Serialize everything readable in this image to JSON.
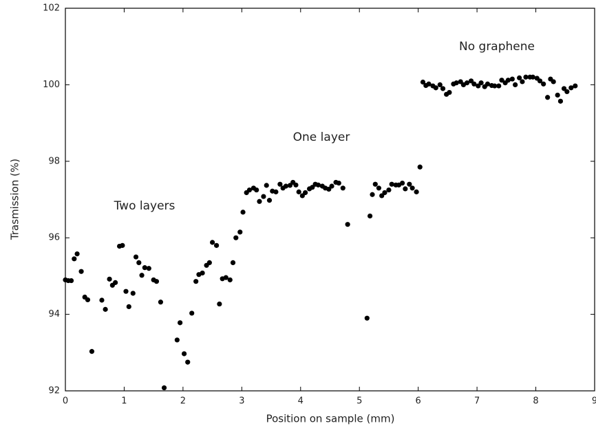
{
  "chart_data": {
    "type": "scatter",
    "x_label": "Position on sample (mm)",
    "y_label": "Trasmission (%)",
    "annotations": [
      "Two layers",
      "One layer",
      "No graphene"
    ],
    "color": "#000000",
    "xlim": [
      0,
      9
    ],
    "xticks": [
      0,
      1,
      2,
      3,
      4,
      5,
      6,
      7,
      8,
      9
    ],
    "ylim": [
      92,
      102
    ],
    "yticks": [
      92,
      94,
      96,
      98,
      100,
      102
    ],
    "x": [
      0.0,
      0.05,
      0.1,
      0.15,
      0.2,
      0.27,
      0.33,
      0.38,
      0.45,
      0.62,
      0.68,
      0.75,
      0.8,
      0.85,
      0.92,
      0.97,
      1.03,
      1.08,
      1.15,
      1.2,
      1.25,
      1.3,
      1.35,
      1.42,
      1.5,
      1.55,
      1.62,
      1.68,
      1.9,
      1.95,
      2.02,
      2.08,
      2.15,
      2.22,
      2.27,
      2.33,
      2.4,
      2.45,
      2.5,
      2.57,
      2.62,
      2.67,
      2.73,
      2.8,
      2.85,
      2.9,
      2.97,
      3.02,
      3.08,
      3.13,
      3.2,
      3.25,
      3.3,
      3.37,
      3.42,
      3.47,
      3.52,
      3.58,
      3.65,
      3.7,
      3.75,
      3.82,
      3.87,
      3.92,
      3.97,
      4.03,
      4.08,
      4.15,
      4.2,
      4.25,
      4.3,
      4.37,
      4.42,
      4.48,
      4.53,
      4.6,
      4.65,
      4.72,
      4.8,
      5.13,
      5.18,
      5.22,
      5.27,
      5.33,
      5.38,
      5.43,
      5.5,
      5.55,
      5.62,
      5.67,
      5.73,
      5.78,
      5.85,
      5.9,
      5.97,
      6.03,
      6.08,
      6.13,
      6.18,
      6.25,
      6.3,
      6.37,
      6.42,
      6.48,
      6.53,
      6.6,
      6.65,
      6.72,
      6.77,
      6.83,
      6.9,
      6.95,
      7.02,
      7.07,
      7.13,
      7.18,
      7.25,
      7.3,
      7.37,
      7.42,
      7.48,
      7.53,
      7.6,
      7.65,
      7.72,
      7.77,
      7.83,
      7.9,
      7.95,
      8.02,
      8.07,
      8.13,
      8.2,
      8.25,
      8.3,
      8.37,
      8.42,
      8.48,
      8.53,
      8.6,
      8.67
    ],
    "values": [
      94.9,
      94.88,
      94.88,
      95.45,
      95.58,
      95.12,
      94.45,
      94.38,
      93.03,
      94.37,
      94.13,
      94.92,
      94.76,
      94.83,
      95.78,
      95.8,
      94.6,
      94.2,
      94.55,
      95.5,
      95.35,
      95.02,
      95.22,
      95.2,
      94.9,
      94.86,
      94.32,
      92.08,
      93.33,
      93.78,
      92.97,
      92.75,
      94.03,
      94.86,
      95.04,
      95.08,
      95.28,
      95.35,
      95.88,
      95.8,
      94.27,
      94.93,
      94.96,
      94.9,
      95.35,
      96.0,
      96.15,
      96.67,
      97.18,
      97.25,
      97.3,
      97.25,
      96.95,
      97.08,
      97.37,
      96.98,
      97.22,
      97.2,
      97.4,
      97.3,
      97.35,
      97.37,
      97.45,
      97.38,
      97.2,
      97.1,
      97.18,
      97.28,
      97.32,
      97.4,
      97.38,
      97.35,
      97.3,
      97.27,
      97.35,
      97.45,
      97.43,
      97.3,
      96.35,
      93.9,
      96.57,
      97.13,
      97.4,
      97.3,
      97.1,
      97.18,
      97.25,
      97.4,
      97.38,
      97.38,
      97.43,
      97.28,
      97.4,
      97.3,
      97.2,
      97.85,
      100.07,
      99.98,
      100.02,
      99.97,
      99.92,
      100.0,
      99.9,
      99.75,
      99.8,
      100.02,
      100.05,
      100.08,
      100.0,
      100.05,
      100.1,
      100.02,
      99.97,
      100.05,
      99.95,
      100.02,
      99.98,
      99.97,
      99.97,
      100.12,
      100.05,
      100.12,
      100.15,
      100.0,
      100.18,
      100.08,
      100.2,
      100.2,
      100.2,
      100.17,
      100.1,
      100.02,
      99.67,
      100.15,
      100.08,
      99.73,
      99.57,
      99.9,
      99.82,
      99.92,
      99.97
    ]
  }
}
